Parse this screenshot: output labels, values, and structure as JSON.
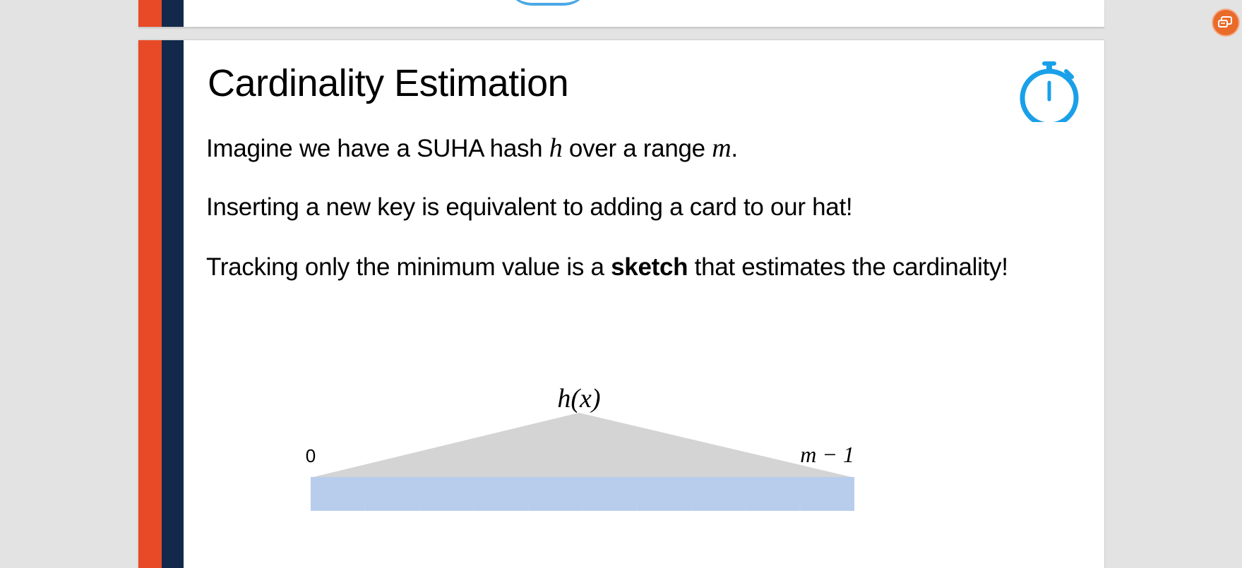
{
  "slide": {
    "title": "Cardinality Estimation",
    "line1": {
      "pre": "Imagine we have a SUHA hash ",
      "var_h": "h",
      "mid": " over a range ",
      "var_m": "m",
      "post": "."
    },
    "line2": "Inserting a new key is equivalent to adding a card to our hat!",
    "line3": {
      "pre": "Tracking only the minimum value is a ",
      "bold": "sketch",
      "post": " that estimates the cardinality!"
    },
    "diagram": {
      "top_label": "h(x)",
      "left_label": "0",
      "right_label": "m − 1",
      "cell_count": 10,
      "colors": {
        "triangle": "#d4d4d4",
        "range_bar": "#b8cdec",
        "cell_divider": "#c9d8ef"
      }
    }
  },
  "icons": {
    "timer": "stopwatch-icon",
    "notification": "chat-notification-icon"
  },
  "colors": {
    "accent_orange": "#e84a27",
    "accent_navy": "#13294b",
    "stopwatch_blue": "#1aa0e8",
    "notif_orange": "#ea6a2a"
  }
}
